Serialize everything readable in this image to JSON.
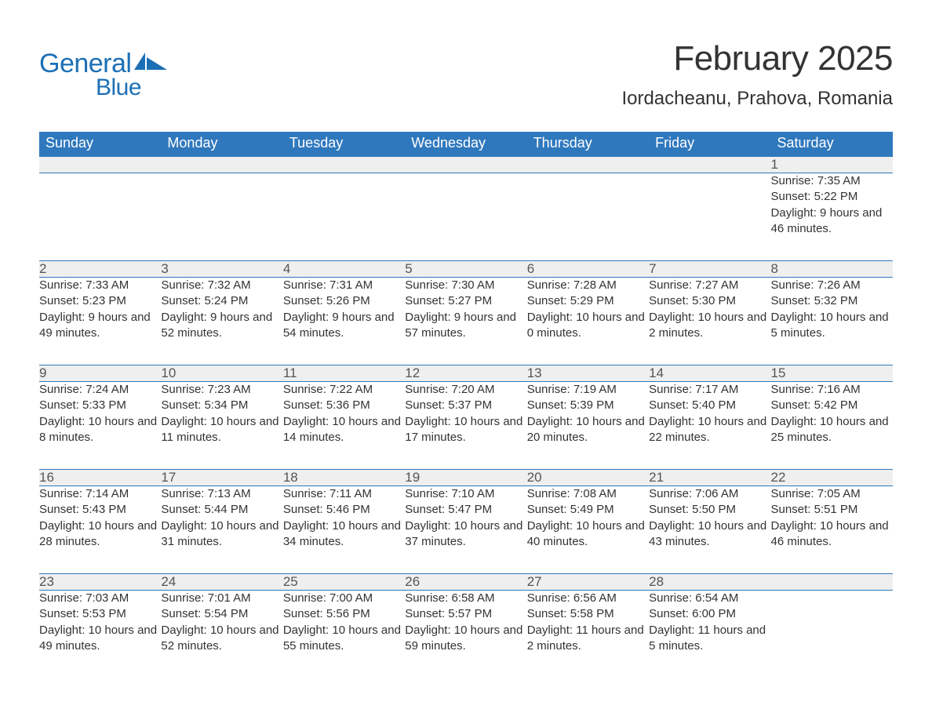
{
  "brand": {
    "word1": "General",
    "word2": "Blue",
    "brand_color": "#1b6fb5"
  },
  "title": "February 2025",
  "location": "Iordacheanu, Prahova, Romania",
  "header_bg": "#2f78bd",
  "header_fg": "#ffffff",
  "daynum_bg": "#efefef",
  "border_color": "#2f78bd",
  "weekdays": [
    "Sunday",
    "Monday",
    "Tuesday",
    "Wednesday",
    "Thursday",
    "Friday",
    "Saturday"
  ],
  "weeks": [
    [
      null,
      null,
      null,
      null,
      null,
      null,
      {
        "day": "1",
        "sunrise": "Sunrise: 7:35 AM",
        "sunset": "Sunset: 5:22 PM",
        "daylight": "Daylight: 9 hours and 46 minutes."
      }
    ],
    [
      {
        "day": "2",
        "sunrise": "Sunrise: 7:33 AM",
        "sunset": "Sunset: 5:23 PM",
        "daylight": "Daylight: 9 hours and 49 minutes."
      },
      {
        "day": "3",
        "sunrise": "Sunrise: 7:32 AM",
        "sunset": "Sunset: 5:24 PM",
        "daylight": "Daylight: 9 hours and 52 minutes."
      },
      {
        "day": "4",
        "sunrise": "Sunrise: 7:31 AM",
        "sunset": "Sunset: 5:26 PM",
        "daylight": "Daylight: 9 hours and 54 minutes."
      },
      {
        "day": "5",
        "sunrise": "Sunrise: 7:30 AM",
        "sunset": "Sunset: 5:27 PM",
        "daylight": "Daylight: 9 hours and 57 minutes."
      },
      {
        "day": "6",
        "sunrise": "Sunrise: 7:28 AM",
        "sunset": "Sunset: 5:29 PM",
        "daylight": "Daylight: 10 hours and 0 minutes."
      },
      {
        "day": "7",
        "sunrise": "Sunrise: 7:27 AM",
        "sunset": "Sunset: 5:30 PM",
        "daylight": "Daylight: 10 hours and 2 minutes."
      },
      {
        "day": "8",
        "sunrise": "Sunrise: 7:26 AM",
        "sunset": "Sunset: 5:32 PM",
        "daylight": "Daylight: 10 hours and 5 minutes."
      }
    ],
    [
      {
        "day": "9",
        "sunrise": "Sunrise: 7:24 AM",
        "sunset": "Sunset: 5:33 PM",
        "daylight": "Daylight: 10 hours and 8 minutes."
      },
      {
        "day": "10",
        "sunrise": "Sunrise: 7:23 AM",
        "sunset": "Sunset: 5:34 PM",
        "daylight": "Daylight: 10 hours and 11 minutes."
      },
      {
        "day": "11",
        "sunrise": "Sunrise: 7:22 AM",
        "sunset": "Sunset: 5:36 PM",
        "daylight": "Daylight: 10 hours and 14 minutes."
      },
      {
        "day": "12",
        "sunrise": "Sunrise: 7:20 AM",
        "sunset": "Sunset: 5:37 PM",
        "daylight": "Daylight: 10 hours and 17 minutes."
      },
      {
        "day": "13",
        "sunrise": "Sunrise: 7:19 AM",
        "sunset": "Sunset: 5:39 PM",
        "daylight": "Daylight: 10 hours and 20 minutes."
      },
      {
        "day": "14",
        "sunrise": "Sunrise: 7:17 AM",
        "sunset": "Sunset: 5:40 PM",
        "daylight": "Daylight: 10 hours and 22 minutes."
      },
      {
        "day": "15",
        "sunrise": "Sunrise: 7:16 AM",
        "sunset": "Sunset: 5:42 PM",
        "daylight": "Daylight: 10 hours and 25 minutes."
      }
    ],
    [
      {
        "day": "16",
        "sunrise": "Sunrise: 7:14 AM",
        "sunset": "Sunset: 5:43 PM",
        "daylight": "Daylight: 10 hours and 28 minutes."
      },
      {
        "day": "17",
        "sunrise": "Sunrise: 7:13 AM",
        "sunset": "Sunset: 5:44 PM",
        "daylight": "Daylight: 10 hours and 31 minutes."
      },
      {
        "day": "18",
        "sunrise": "Sunrise: 7:11 AM",
        "sunset": "Sunset: 5:46 PM",
        "daylight": "Daylight: 10 hours and 34 minutes."
      },
      {
        "day": "19",
        "sunrise": "Sunrise: 7:10 AM",
        "sunset": "Sunset: 5:47 PM",
        "daylight": "Daylight: 10 hours and 37 minutes."
      },
      {
        "day": "20",
        "sunrise": "Sunrise: 7:08 AM",
        "sunset": "Sunset: 5:49 PM",
        "daylight": "Daylight: 10 hours and 40 minutes."
      },
      {
        "day": "21",
        "sunrise": "Sunrise: 7:06 AM",
        "sunset": "Sunset: 5:50 PM",
        "daylight": "Daylight: 10 hours and 43 minutes."
      },
      {
        "day": "22",
        "sunrise": "Sunrise: 7:05 AM",
        "sunset": "Sunset: 5:51 PM",
        "daylight": "Daylight: 10 hours and 46 minutes."
      }
    ],
    [
      {
        "day": "23",
        "sunrise": "Sunrise: 7:03 AM",
        "sunset": "Sunset: 5:53 PM",
        "daylight": "Daylight: 10 hours and 49 minutes."
      },
      {
        "day": "24",
        "sunrise": "Sunrise: 7:01 AM",
        "sunset": "Sunset: 5:54 PM",
        "daylight": "Daylight: 10 hours and 52 minutes."
      },
      {
        "day": "25",
        "sunrise": "Sunrise: 7:00 AM",
        "sunset": "Sunset: 5:56 PM",
        "daylight": "Daylight: 10 hours and 55 minutes."
      },
      {
        "day": "26",
        "sunrise": "Sunrise: 6:58 AM",
        "sunset": "Sunset: 5:57 PM",
        "daylight": "Daylight: 10 hours and 59 minutes."
      },
      {
        "day": "27",
        "sunrise": "Sunrise: 6:56 AM",
        "sunset": "Sunset: 5:58 PM",
        "daylight": "Daylight: 11 hours and 2 minutes."
      },
      {
        "day": "28",
        "sunrise": "Sunrise: 6:54 AM",
        "sunset": "Sunset: 6:00 PM",
        "daylight": "Daylight: 11 hours and 5 minutes."
      },
      null
    ]
  ]
}
